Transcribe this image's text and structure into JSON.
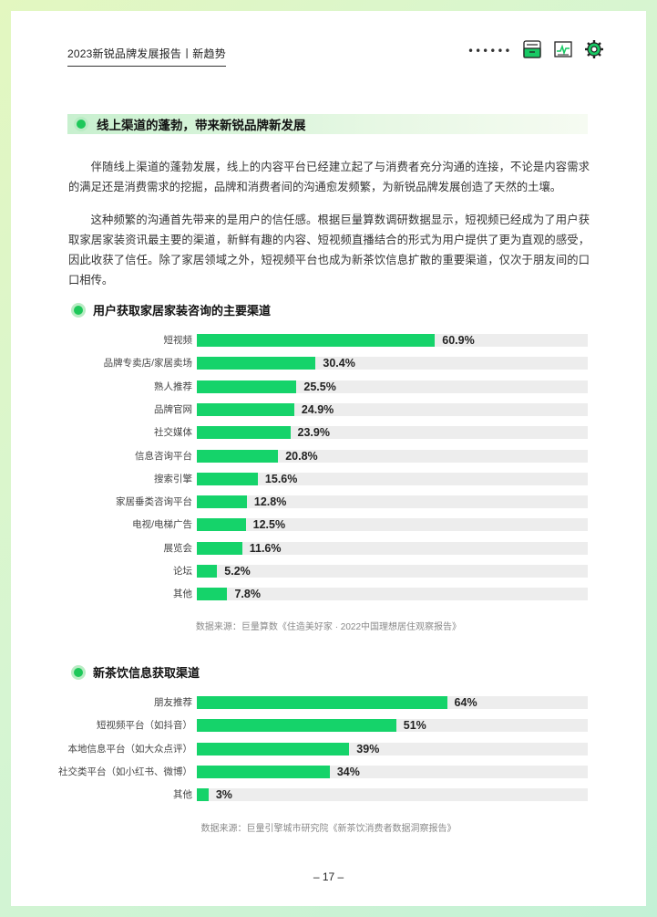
{
  "header": {
    "title": "2023新锐品牌发展报告丨新趋势",
    "dots": "••••••",
    "icons": [
      "archive-box-icon",
      "trend-chart-icon",
      "gear-icon"
    ]
  },
  "section": {
    "title": "线上渠道的蓬勃，带来新锐品牌新发展"
  },
  "paragraphs": [
    "伴随线上渠道的蓬勃发展，线上的内容平台已经建立起了与消费者充分沟通的连接，不论是内容需求的满足还是消费需求的挖掘，品牌和消费者间的沟通愈发频繁，为新锐品牌发展创造了天然的土壤。",
    "这种频繁的沟通首先带来的是用户的信任感。根据巨量算数调研数据显示，短视频已经成为了用户获取家居家装资讯最主要的渠道，新鲜有趣的内容、短视频直播结合的形式为用户提供了更为直观的感受，因此收获了信任。除了家居领域之外，短视频平台也成为新茶饮信息扩散的重要渠道，仅次于朋友间的口口相传。"
  ],
  "colors": {
    "accent": "#15d36a",
    "track": "#ededed",
    "section_bar": "#c8f0cf"
  },
  "chart_data": [
    {
      "type": "bar",
      "orientation": "horizontal",
      "title": "用户获取家居家装咨询的主要渠道",
      "categories": [
        "短视频",
        "品牌专卖店/家居卖场",
        "熟人推荐",
        "品牌官网",
        "社交媒体",
        "信息咨询平台",
        "搜索引擎",
        "家居垂类咨询平台",
        "电视/电梯广告",
        "展览会",
        "论坛",
        "其他"
      ],
      "values": [
        60.9,
        30.4,
        25.5,
        24.9,
        23.9,
        20.8,
        15.6,
        12.8,
        12.5,
        11.6,
        5.2,
        7.8
      ],
      "value_labels": [
        "60.9%",
        "30.4%",
        "25.5%",
        "24.9%",
        "23.9%",
        "20.8%",
        "15.6%",
        "12.8%",
        "12.5%",
        "11.6%",
        "5.2%",
        "7.8%"
      ],
      "unit": "%",
      "xlim": [
        0,
        100
      ],
      "grid": false,
      "source": "数据来源：巨量算数《住造美好家 · 2022中国理想居住观察报告》"
    },
    {
      "type": "bar",
      "orientation": "horizontal",
      "title": "新茶饮信息获取渠道",
      "categories": [
        "朋友推荐",
        "短视频平台（如抖音）",
        "本地信息平台（如大众点评）",
        "社交类平台（如小红书、微博）",
        "其他"
      ],
      "values": [
        64,
        51,
        39,
        34,
        3
      ],
      "value_labels": [
        "64%",
        "51%",
        "39%",
        "34%",
        "3%"
      ],
      "unit": "%",
      "xlim": [
        0,
        100
      ],
      "grid": false,
      "source": "数据来源：巨量引擎城市研究院《新茶饮消费者数据洞察报告》"
    }
  ],
  "page_number": "– 17 –"
}
